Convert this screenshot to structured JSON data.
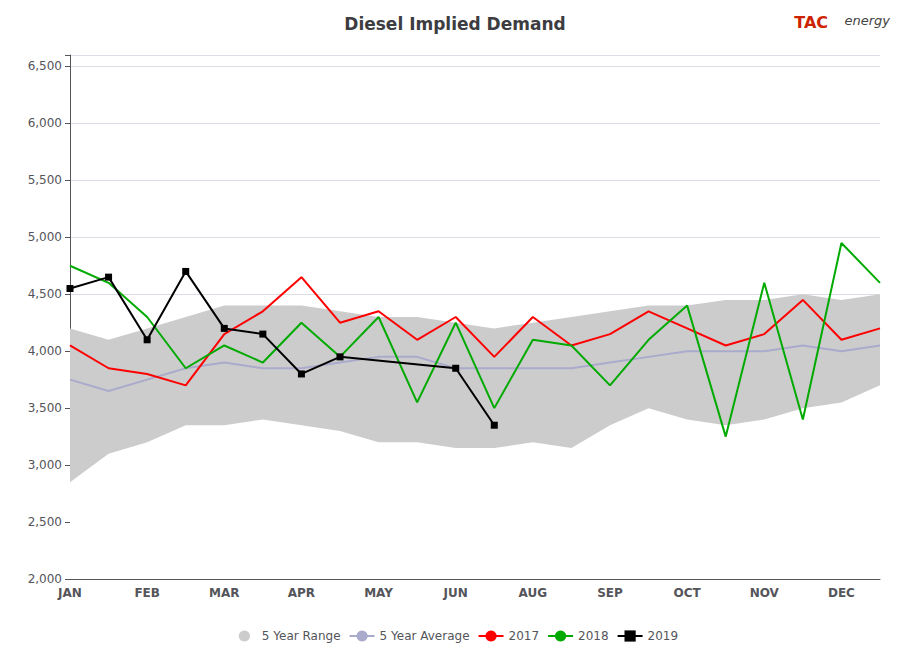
{
  "chart_data": {
    "type": "line",
    "title": "Diesel Implied Demand",
    "annotations": [
      {
        "text": "TAC",
        "color": "#cc2200"
      },
      {
        "text": "energy",
        "color": "#444444"
      }
    ],
    "categories": [
      "JAN",
      null,
      "FEB",
      null,
      "MAR",
      null,
      "APR",
      null,
      "MAY",
      null,
      "JUN",
      null,
      "AUG",
      null,
      "SEP",
      null,
      "OCT",
      null,
      "NOV",
      null,
      "DEC",
      null
    ],
    "ylim": [
      2000,
      6600
    ],
    "yticks": [
      {
        "value": 2000,
        "label": "2,000"
      },
      {
        "value": 2500,
        "label": "2,500"
      },
      {
        "value": 3000,
        "label": "3,000"
      },
      {
        "value": 3500,
        "label": "3,500"
      },
      {
        "value": 4000,
        "label": "4,000"
      },
      {
        "value": 4500,
        "label": "4,500"
      },
      {
        "value": 5000,
        "label": "5,000"
      },
      {
        "value": 5500,
        "label": "5,500"
      },
      {
        "value": 6000,
        "label": "6,000"
      },
      {
        "value": 6500,
        "label": "6,500"
      }
    ],
    "grid": true,
    "legend": "bottom",
    "series": [
      {
        "name": "5 Year Range",
        "type": "range",
        "color": "#cccccc",
        "min": [
          2850,
          3100,
          3200,
          3350,
          3350,
          3400,
          3350,
          3300,
          3200,
          3200,
          3150,
          3150,
          3200,
          3150,
          3350,
          3500,
          3400,
          3350,
          3400,
          3500,
          3550,
          3700
        ],
        "max": [
          4200,
          4100,
          4200,
          4300,
          4400,
          4400,
          4400,
          4350,
          4300,
          4300,
          4250,
          4200,
          4250,
          4300,
          4350,
          4400,
          4400,
          4450,
          4450,
          4500,
          4450,
          4500
        ]
      },
      {
        "name": "5 Year Average",
        "color": "#aaaacc",
        "values": [
          3750,
          3650,
          3750,
          3850,
          3900,
          3850,
          3850,
          3900,
          3950,
          3950,
          3850,
          3850,
          3850,
          3850,
          3900,
          3950,
          4000,
          4000,
          4000,
          4050,
          4000,
          4050
        ]
      },
      {
        "name": "2017",
        "color": "#ff0000",
        "values": [
          4050,
          3850,
          3800,
          3700,
          4150,
          4350,
          4650,
          4250,
          4350,
          4100,
          4300,
          3950,
          4300,
          4050,
          4150,
          4350,
          4200,
          4050,
          4150,
          4450,
          4100,
          4200
        ]
      },
      {
        "name": "2018",
        "color": "#00aa00",
        "values": [
          4750,
          4600,
          4300,
          3850,
          4050,
          3900,
          4250,
          3950,
          4300,
          3550,
          4250,
          3500,
          4100,
          4050,
          3700,
          4100,
          4400,
          3250,
          4600,
          3400,
          4950,
          4600
        ]
      },
      {
        "name": "2019",
        "color": "#000000",
        "marker": "square",
        "values": [
          4550,
          4650,
          4100,
          4700,
          4200,
          4150,
          3800,
          3950,
          null,
          null,
          3850,
          3350,
          null,
          null,
          null,
          null,
          null,
          null,
          null,
          null,
          null,
          null
        ]
      }
    ]
  }
}
